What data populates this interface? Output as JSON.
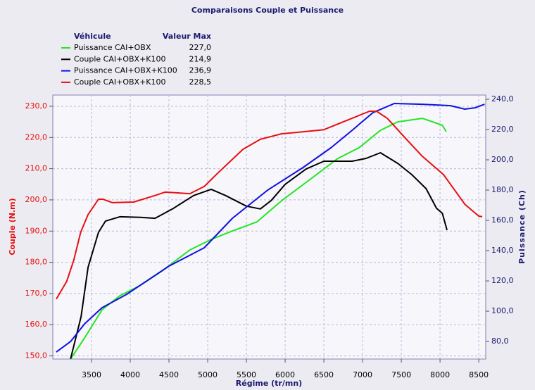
{
  "chart_data": {
    "type": "line",
    "title": "Comparaisons Couple et Puissance",
    "xlabel": "Régime (tr/mn)",
    "ylabel": "Couple (N.m)",
    "y2label": "Puissance (Ch)",
    "legend_headers": [
      "Véhicule",
      "Valeur Max"
    ],
    "xlim": [
      3000,
      8590
    ],
    "xticks": [
      3500,
      4000,
      4500,
      5000,
      5500,
      6000,
      6500,
      7000,
      7500,
      8000,
      8500
    ],
    "ylim": [
      149,
      233.6
    ],
    "yticks": [
      {
        "value": 150,
        "label": "150,0"
      },
      {
        "value": 160,
        "label": "160,0"
      },
      {
        "value": 170,
        "label": "170,0"
      },
      {
        "value": 180,
        "label": "180,0"
      },
      {
        "value": 190,
        "label": "190,0"
      },
      {
        "value": 200,
        "label": "200,0"
      },
      {
        "value": 210,
        "label": "210,0"
      },
      {
        "value": 220,
        "label": "220,0"
      },
      {
        "value": 230,
        "label": "230,0"
      }
    ],
    "y2lim": [
      68.4,
      242.8
    ],
    "y2ticks": [
      {
        "value": 80,
        "label": "80,0"
      },
      {
        "value": 100,
        "label": "100,0"
      },
      {
        "value": 120,
        "label": "120,0"
      },
      {
        "value": 140,
        "label": "140,0"
      },
      {
        "value": 160,
        "label": "160,0"
      },
      {
        "value": 180,
        "label": "180,0"
      },
      {
        "value": 200,
        "label": "200,0"
      },
      {
        "value": 220,
        "label": "220,0"
      },
      {
        "value": 240,
        "label": "240,0"
      }
    ],
    "grid": true,
    "series": [
      {
        "name": "Puissance CAI+OBX",
        "color": "#22e622",
        "axis": "y2",
        "max": 227.0,
        "max_label": "227,0",
        "x": [
          3230,
          3410,
          3635,
          3865,
          4135,
          4410,
          4770,
          5045,
          5320,
          5635,
          5955,
          6320,
          6680,
          6955,
          7230,
          7455,
          7770,
          7955,
          8030,
          8080
        ],
        "values": [
          68.4,
          82.3,
          100.9,
          110.2,
          117.2,
          126.5,
          140.5,
          147.4,
          153,
          159,
          173,
          187,
          200.9,
          208,
          219.5,
          225.1,
          227.4,
          224.2,
          222.8,
          218.6
        ]
      },
      {
        "name": "Couple CAI+OBX+K100",
        "color": "#000000",
        "max": 214.9,
        "max_label": "214,9",
        "x": [
          3230,
          3365,
          3455,
          3590,
          3680,
          3865,
          4135,
          4320,
          4545,
          4820,
          5045,
          5230,
          5500,
          5680,
          5820,
          6000,
          6270,
          6500,
          6865,
          7045,
          7230,
          7455,
          7635,
          7820,
          7955,
          8030,
          8090
        ],
        "values": [
          149.1,
          162.6,
          178.4,
          189.6,
          193.2,
          194.6,
          194.4,
          194.1,
          197.1,
          201.4,
          203.4,
          201.4,
          198,
          197.1,
          199.8,
          205,
          209.9,
          212.4,
          212.4,
          213.3,
          215.1,
          211.7,
          208.1,
          203.6,
          197.3,
          195.7,
          190.3
        ]
      },
      {
        "name": "Puissance CAI+OBX+K100",
        "color": "#1010e0",
        "axis": "y2",
        "max": 236.9,
        "max_label": "236,9",
        "x": [
          3045,
          3230,
          3410,
          3635,
          3955,
          4500,
          4955,
          5320,
          5775,
          6230,
          6590,
          6865,
          7135,
          7410,
          7770,
          8135,
          8320,
          8455,
          8575
        ],
        "values": [
          73,
          80,
          91.6,
          102.3,
          111.2,
          129.8,
          141.9,
          161.4,
          180,
          194.9,
          207.9,
          219.5,
          231.2,
          237.2,
          236.7,
          235.8,
          233.5,
          234.4,
          236.7
        ]
      },
      {
        "name": "Couple CAI+OBX+K100",
        "color": "#e61010",
        "max": 228.5,
        "max_label": "228,5",
        "x": [
          3045,
          3180,
          3270,
          3360,
          3455,
          3590,
          3650,
          3770,
          4045,
          4320,
          4450,
          4770,
          4955,
          5140,
          5455,
          5680,
          5955,
          6135,
          6500,
          6770,
          7090,
          7180,
          7320,
          7545,
          7770,
          8045,
          8320,
          8500,
          8545
        ],
        "values": [
          168.2,
          173.9,
          180.6,
          189.6,
          195.3,
          200.2,
          200.2,
          199.1,
          199.3,
          201.4,
          202.5,
          202,
          204.3,
          208.8,
          216.2,
          219.4,
          221.2,
          221.6,
          222.5,
          225.2,
          228.4,
          228.4,
          226.1,
          220,
          214,
          208.1,
          198.6,
          194.8,
          194.6
        ]
      }
    ]
  }
}
